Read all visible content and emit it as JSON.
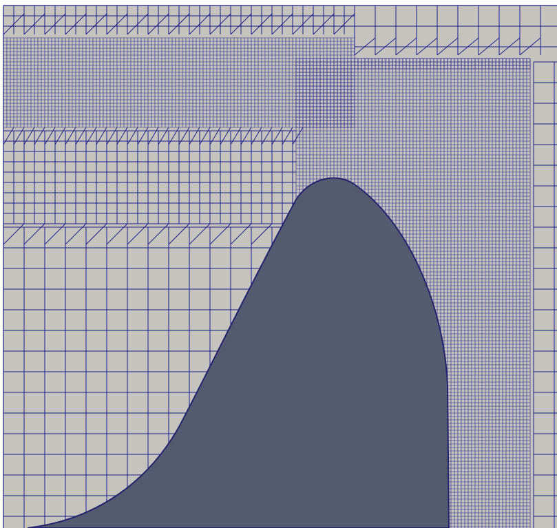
{
  "scene": {
    "description_free": true,
    "colors": {
      "background": "#ffffff",
      "fluid_domain": "#c5c3bd",
      "mesh_lines": "#1c1c8a",
      "solid_body": "#545a70",
      "body_outline": "#23236e"
    },
    "mesh": {
      "coarse_cell_size": 30,
      "medium_cell_size": 15,
      "fine_cell_size": 5
    }
  }
}
